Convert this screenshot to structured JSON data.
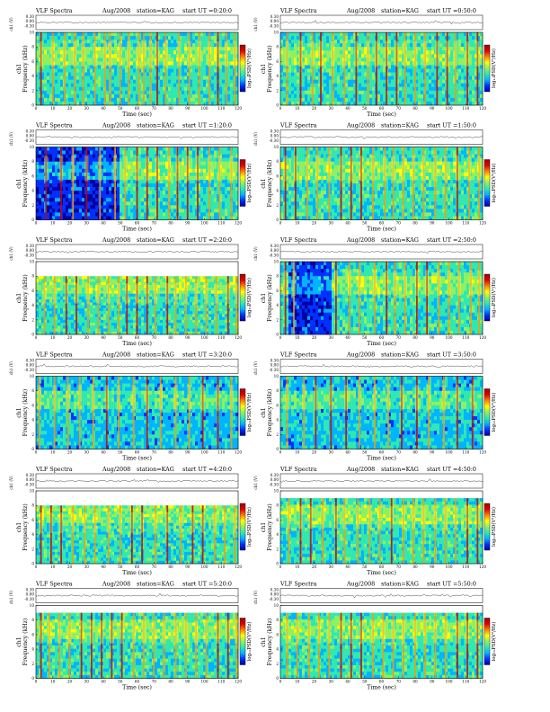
{
  "figure": {
    "colorbar": {
      "label": "log₁₀PSD(V²/Hz)",
      "stops": [
        "#0000a0",
        "#0030ff",
        "#00b4ff",
        "#30e8b0",
        "#90f060",
        "#ffff00",
        "#ff8000",
        "#e00000",
        "#a00000"
      ]
    },
    "channel_label": "ch1",
    "amp_axis_label": "ch1 (V)",
    "amp_ticks": [
      "0.30",
      "0.00",
      "-0.30"
    ]
  },
  "chart_data": [
    {
      "type": "heatmap",
      "title": "VLF Spectra",
      "date": "Aug/2008",
      "station": "station=KAG",
      "start": "start UT =0:20:0",
      "xlabel": "Time (sec)",
      "ylabel": "Frequency (kHz)",
      "xlim": [
        0,
        120
      ],
      "ylim": [
        0,
        10
      ],
      "xticks": [
        "0",
        "10",
        "20",
        "30",
        "40",
        "50",
        "60",
        "70",
        "80",
        "90",
        "100",
        "110",
        "120"
      ],
      "yticks": [
        "0",
        "2",
        "4",
        "6",
        "8",
        "10"
      ],
      "band_top_khz": 10,
      "bursts": [
        3,
        10,
        17,
        23,
        28,
        35,
        41,
        44,
        50,
        55,
        61,
        64,
        68,
        72,
        77,
        85,
        91,
        97,
        103,
        108,
        113,
        118
      ]
    },
    {
      "type": "heatmap",
      "title": "VLF Spectra",
      "date": "Aug/2008",
      "station": "station=KAG",
      "start": "start UT =0:50:0",
      "xlabel": "Time (sec)",
      "ylabel": "Frequency (kHz)",
      "xlim": [
        0,
        120
      ],
      "ylim": [
        0,
        10
      ],
      "xticks": [
        "0",
        "10",
        "20",
        "30",
        "40",
        "50",
        "60",
        "70",
        "80",
        "90",
        "100",
        "110",
        "120"
      ],
      "yticks": [
        "0",
        "2",
        "4",
        "6",
        "8",
        "10"
      ],
      "band_top_khz": 10,
      "bursts": [
        4,
        12,
        19,
        24,
        31,
        38,
        45,
        52,
        57,
        63,
        69,
        74,
        80,
        86,
        93,
        99,
        104,
        111,
        117
      ]
    },
    {
      "type": "heatmap",
      "title": "VLF Spectra",
      "date": "Aug/2008",
      "station": "station=KAG",
      "start": "start UT =1:20:0",
      "xlabel": "Time (sec)",
      "ylabel": "Frequency (kHz)",
      "xlim": [
        0,
        120
      ],
      "ylim": [
        0,
        10
      ],
      "xticks": [
        "0",
        "10",
        "20",
        "30",
        "40",
        "50",
        "60",
        "70",
        "80",
        "90",
        "100",
        "110",
        "120"
      ],
      "yticks": [
        "0",
        "2",
        "4",
        "6",
        "8",
        "10"
      ],
      "band_top_khz": 10,
      "quiet_range": [
        0,
        50
      ],
      "bursts": [
        6,
        15,
        22,
        30,
        38,
        47,
        53,
        60,
        66,
        72,
        79,
        84,
        90,
        96,
        103,
        109,
        116
      ]
    },
    {
      "type": "heatmap",
      "title": "VLF Spectra",
      "date": "Aug/2008",
      "station": "station=KAG",
      "start": "start UT =1:50:0",
      "xlabel": "Time (sec)",
      "ylabel": "Frequency (kHz)",
      "xlim": [
        0,
        120
      ],
      "ylim": [
        0,
        10
      ],
      "xticks": [
        "0",
        "10",
        "20",
        "30",
        "40",
        "50",
        "60",
        "70",
        "80",
        "90",
        "100",
        "110",
        "120"
      ],
      "yticks": [
        "0",
        "2",
        "4",
        "6",
        "8",
        "10"
      ],
      "band_top_khz": 10,
      "bursts": [
        3,
        9,
        16,
        22,
        29,
        36,
        42,
        48,
        55,
        62,
        67,
        73,
        79,
        85,
        92,
        98,
        105,
        112,
        118
      ]
    },
    {
      "type": "heatmap",
      "title": "VLF Spectra",
      "date": "Aug/2008",
      "station": "station=KAG",
      "start": "start UT =2:20:0",
      "xlabel": "Time (sec)",
      "ylabel": "Frequency (kHz)",
      "xlim": [
        0,
        120
      ],
      "ylim": [
        0,
        10
      ],
      "xticks": [
        "0",
        "10",
        "20",
        "30",
        "40",
        "50",
        "60",
        "70",
        "80",
        "90",
        "100",
        "110",
        "120"
      ],
      "yticks": [
        "0",
        "2",
        "4",
        "6",
        "8",
        "10"
      ],
      "band_top_khz": 8,
      "bursts": [
        5,
        11,
        18,
        24,
        31,
        37,
        43,
        49,
        54,
        60,
        66,
        71,
        78,
        83,
        89,
        95,
        101,
        107,
        114,
        119
      ]
    },
    {
      "type": "heatmap",
      "title": "VLF Spectra",
      "date": "Aug/2008",
      "station": "station=KAG",
      "start": "start UT =2:50:0",
      "xlabel": "Time (sec)",
      "ylabel": "Frequency (kHz)",
      "xlim": [
        0,
        120
      ],
      "ylim": [
        0,
        10
      ],
      "xticks": [
        "0",
        "10",
        "20",
        "30",
        "40",
        "50",
        "60",
        "70",
        "80",
        "90",
        "100",
        "110",
        "120"
      ],
      "yticks": [
        "0",
        "2",
        "4",
        "6",
        "8",
        "10"
      ],
      "band_top_khz": 10,
      "quiet_range": [
        5,
        30
      ],
      "bursts": [
        3,
        8,
        33,
        41,
        47,
        56,
        63,
        68,
        74,
        81,
        87,
        94,
        100,
        106,
        113,
        118
      ]
    },
    {
      "type": "heatmap",
      "title": "VLF Spectra",
      "date": "Aug/2008",
      "station": "station=KAG",
      "start": "start UT =3:20:0",
      "xlabel": "Time (sec)",
      "ylabel": "Frequency (kHz)",
      "xlim": [
        0,
        120
      ],
      "ylim": [
        0,
        10
      ],
      "xticks": [
        "0",
        "10",
        "20",
        "30",
        "40",
        "50",
        "60",
        "70",
        "80",
        "90",
        "100",
        "110",
        "120"
      ],
      "yticks": [
        "0",
        "2",
        "4",
        "6",
        "8",
        "10"
      ],
      "band_top_khz": 10,
      "quiet": true,
      "bursts": [
        2,
        11,
        19,
        26,
        34,
        42,
        49,
        58,
        66,
        74,
        83,
        91,
        99,
        108,
        116
      ]
    },
    {
      "type": "heatmap",
      "title": "VLF Spectra",
      "date": "Aug/2008",
      "station": "station=KAG",
      "start": "start UT =3:50:0",
      "xlabel": "Time (sec)",
      "ylabel": "Frequency (kHz)",
      "xlim": [
        0,
        120
      ],
      "ylim": [
        0,
        10
      ],
      "xticks": [
        "0",
        "10",
        "20",
        "30",
        "40",
        "50",
        "60",
        "70",
        "80",
        "90",
        "100",
        "110",
        "120"
      ],
      "yticks": [
        "0",
        "2",
        "4",
        "6",
        "8",
        "10"
      ],
      "band_top_khz": 10,
      "quiet": true,
      "bursts": [
        4,
        14,
        21,
        30,
        39,
        47,
        56,
        64,
        72,
        81,
        88,
        97,
        105,
        114
      ]
    },
    {
      "type": "heatmap",
      "title": "VLF Spectra",
      "date": "Aug/2008",
      "station": "station=KAG",
      "start": "start UT =4:20:0",
      "xlabel": "Time (sec)",
      "ylabel": "Frequency (kHz)",
      "xlim": [
        0,
        120
      ],
      "ylim": [
        0,
        10
      ],
      "xticks": [
        "0",
        "10",
        "20",
        "30",
        "40",
        "50",
        "60",
        "70",
        "80",
        "90",
        "100",
        "110",
        "120"
      ],
      "yticks": [
        "0",
        "2",
        "4",
        "6",
        "8",
        "10"
      ],
      "band_top_khz": 8,
      "bursts": [
        3,
        9,
        15,
        22,
        29,
        35,
        43,
        50,
        57,
        63,
        71,
        78,
        86,
        93,
        99,
        106,
        112,
        118
      ]
    },
    {
      "type": "heatmap",
      "title": "VLF Spectra",
      "date": "Aug/2008",
      "station": "station=KAG",
      "start": "start UT =4:50:0",
      "xlabel": "Time (sec)",
      "ylabel": "Frequency (kHz)",
      "xlim": [
        0,
        120
      ],
      "ylim": [
        0,
        10
      ],
      "xticks": [
        "0",
        "10",
        "20",
        "30",
        "40",
        "50",
        "60",
        "70",
        "80",
        "90",
        "100",
        "110",
        "120"
      ],
      "yticks": [
        "0",
        "2",
        "4",
        "6",
        "8",
        "10"
      ],
      "band_top_khz": 9,
      "bursts": [
        5,
        12,
        18,
        25,
        33,
        38,
        46,
        53,
        59,
        66,
        73,
        79,
        85,
        92,
        98,
        104,
        111,
        117
      ]
    },
    {
      "type": "heatmap",
      "title": "VLF Spectra",
      "date": "Aug/2008",
      "station": "station=KAG",
      "start": "start UT =5:20:0",
      "xlabel": "Time (sec)",
      "ylabel": "Frequency (kHz)",
      "xlim": [
        0,
        120
      ],
      "ylim": [
        0,
        10
      ],
      "xticks": [
        "0",
        "10",
        "20",
        "30",
        "40",
        "50",
        "60",
        "70",
        "80",
        "90",
        "100",
        "110",
        "120"
      ],
      "yticks": [
        "0",
        "2",
        "4",
        "6",
        "8",
        "10"
      ],
      "band_top_khz": 9,
      "bursts": [
        3,
        8,
        14,
        20,
        27,
        33,
        39,
        45,
        51,
        58,
        64,
        70,
        76,
        83,
        89,
        95,
        101,
        108,
        114,
        119
      ]
    },
    {
      "type": "heatmap",
      "title": "VLF Spectra",
      "date": "Aug/2008",
      "station": "station=KAG",
      "start": "start UT =5:50:0",
      "xlabel": "Time (sec)",
      "ylabel": "Frequency (kHz)",
      "xlim": [
        0,
        120
      ],
      "ylim": [
        0,
        10
      ],
      "xticks": [
        "0",
        "10",
        "20",
        "30",
        "40",
        "50",
        "60",
        "70",
        "80",
        "90",
        "100",
        "110",
        "120"
      ],
      "yticks": [
        "0",
        "2",
        "4",
        "6",
        "8",
        "10"
      ],
      "band_top_khz": 9,
      "bursts": [
        4,
        10,
        17,
        23,
        29,
        36,
        42,
        48,
        55,
        61,
        67,
        73,
        80,
        86,
        92,
        98,
        105,
        111,
        117
      ]
    }
  ]
}
